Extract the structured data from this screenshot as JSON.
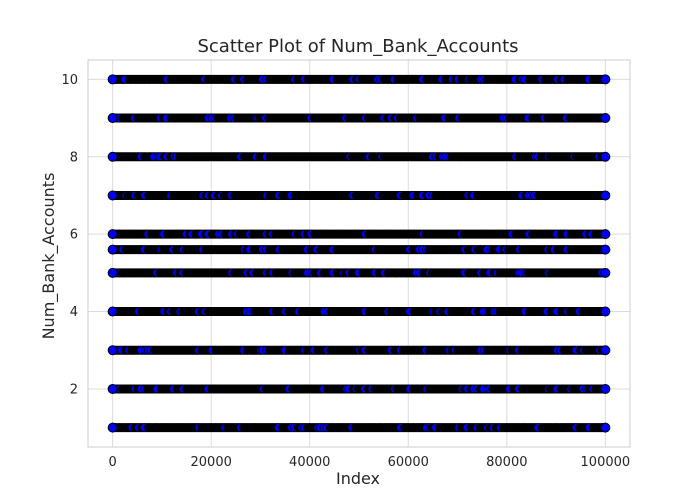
{
  "chart_data": {
    "type": "scatter",
    "title": "Scatter Plot of Num_Bank_Accounts",
    "xlabel": "Index",
    "ylabel": "Num_Bank_Accounts",
    "xlim": [
      -5000,
      105000
    ],
    "ylim": [
      0.5,
      10.5
    ],
    "x_ticks": [
      0,
      20000,
      40000,
      60000,
      80000,
      100000
    ],
    "x_tick_labels": [
      "0",
      "20000",
      "40000",
      "60000",
      "80000",
      "100000"
    ],
    "y_ticks": [
      2,
      4,
      6,
      8,
      10
    ],
    "y_tick_labels": [
      "2",
      "4",
      "6",
      "8",
      "10"
    ],
    "grid": true,
    "marker_fill": "#0000ff",
    "marker_edge": "#000000",
    "series": [
      {
        "values_description_free": true,
        "x_range": [
          0,
          100000
        ],
        "y_levels": [
          1,
          2,
          3,
          4,
          5,
          5.6,
          6,
          7,
          8,
          9,
          10
        ]
      }
    ]
  }
}
